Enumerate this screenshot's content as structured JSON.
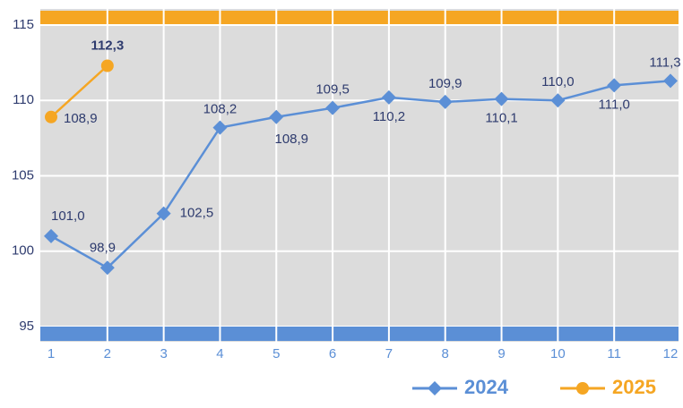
{
  "chart_data": {
    "type": "line",
    "x": [
      1,
      2,
      3,
      4,
      5,
      6,
      7,
      8,
      9,
      10,
      11,
      12
    ],
    "xlim": [
      1,
      12
    ],
    "ylim": [
      95,
      115
    ],
    "yticks": [
      95,
      100,
      105,
      110,
      115
    ],
    "grid": true,
    "series": [
      {
        "name": "2024",
        "color": "#5b8fd6",
        "values": [
          101.0,
          98.9,
          102.5,
          108.2,
          108.9,
          109.5,
          110.2,
          109.9,
          110.1,
          110.0,
          111.0,
          111.3
        ],
        "value_labels": [
          "101,0",
          "98,9",
          "102,5",
          "108,2",
          "108,9",
          "109,5",
          "110,2",
          "109,9",
          "110,1",
          "110,0",
          "111,0",
          "111,3"
        ]
      },
      {
        "name": "2025",
        "color": "#f5a623",
        "values": [
          108.9,
          112.3,
          null,
          null,
          null,
          null,
          null,
          null,
          null,
          null,
          null,
          null
        ],
        "value_labels": [
          "108,9",
          "112,3",
          null,
          null,
          null,
          null,
          null,
          null,
          null,
          null,
          null,
          null
        ]
      }
    ]
  }
}
